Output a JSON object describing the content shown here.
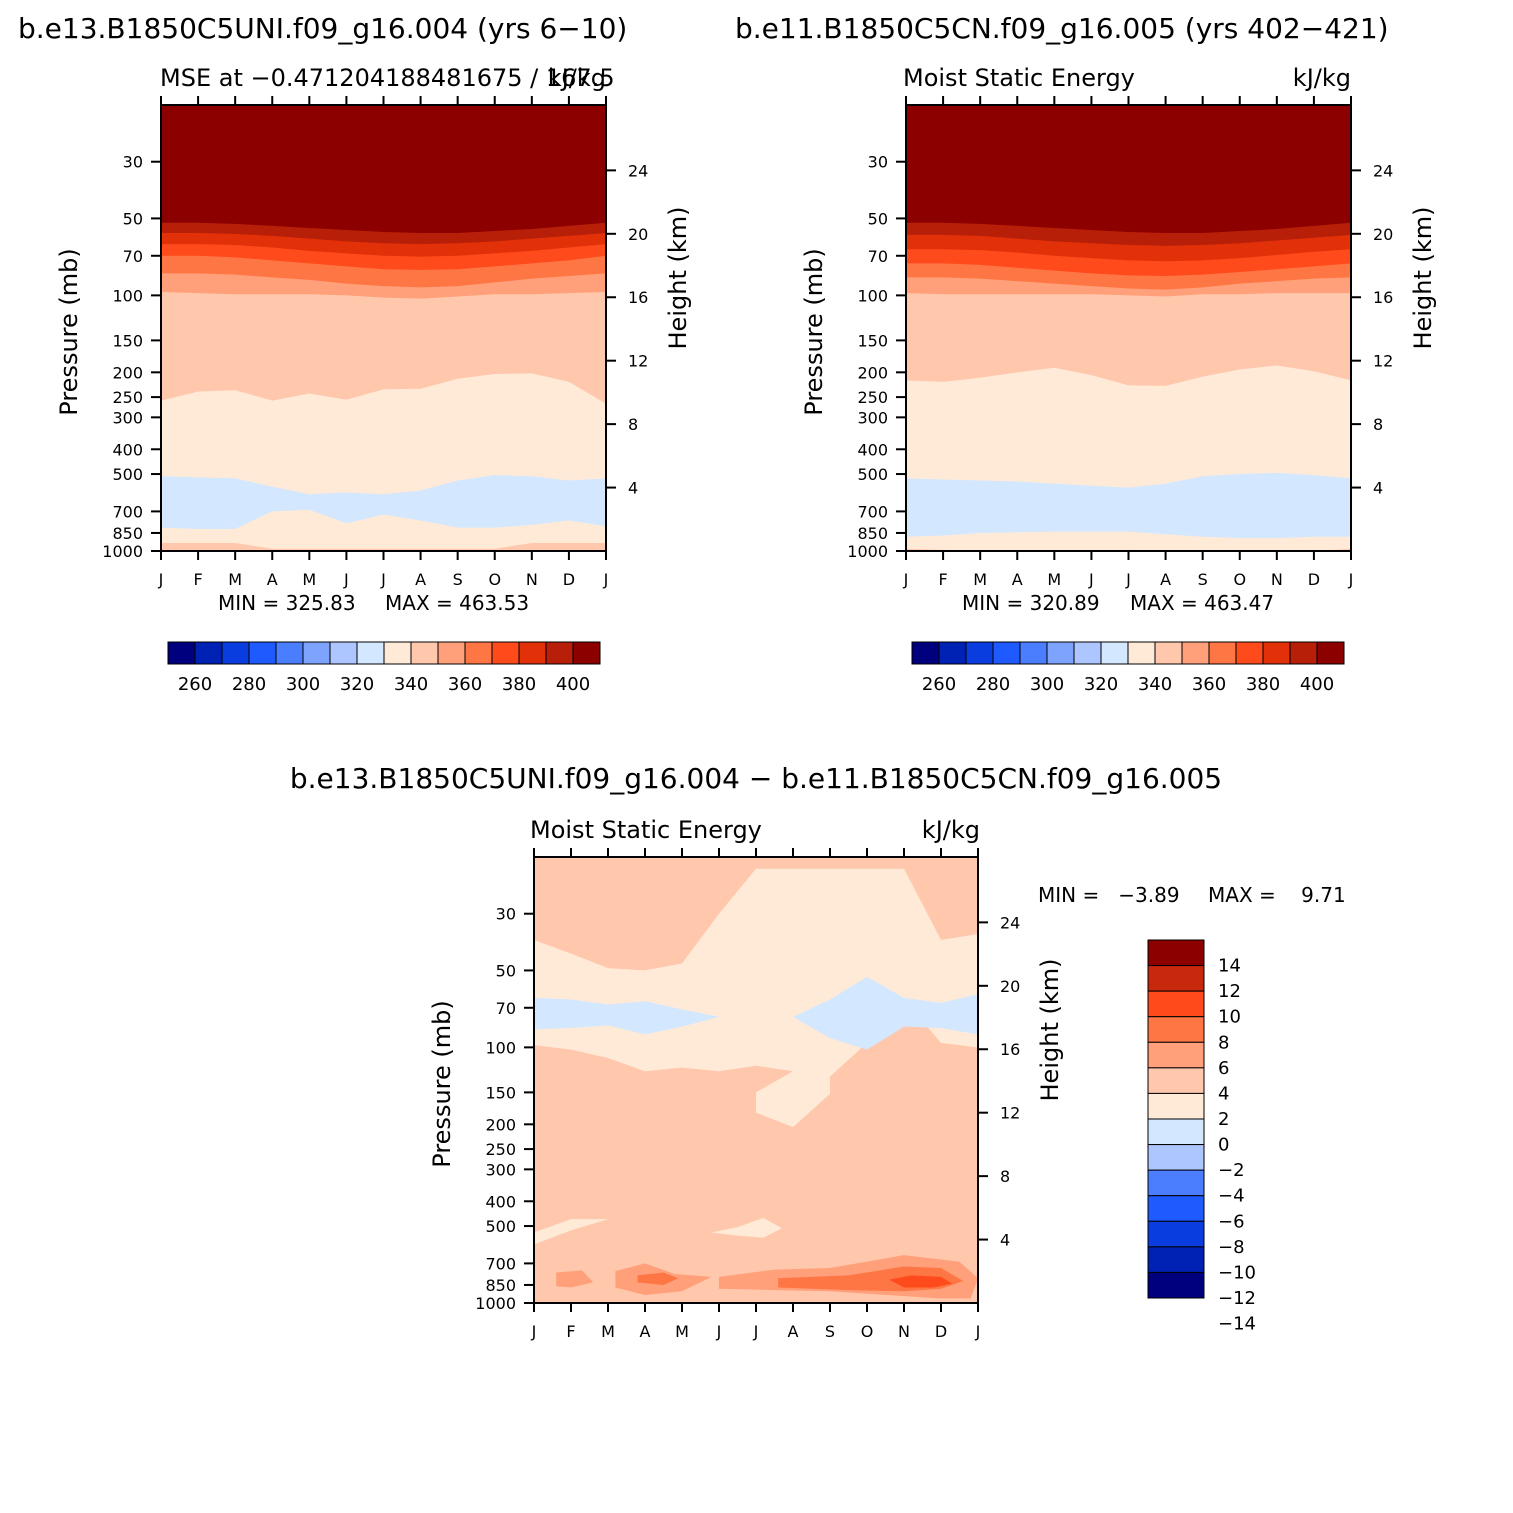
{
  "colors": {
    "mse_scale": [
      "#00007f",
      "#0022b4",
      "#0a3de0",
      "#1f5aff",
      "#4a7eff",
      "#7ea3ff",
      "#aec6ff",
      "#d3e7ff",
      "#ffead8",
      "#ffc8ad",
      "#ffa07a",
      "#ff7645",
      "#ff4a1c",
      "#e23009",
      "#b81f08",
      "#8c0000"
    ],
    "diff_scale": [
      "#00007f",
      "#0022b4",
      "#0a3de0",
      "#1f5aff",
      "#4a7eff",
      "#aec6ff",
      "#d3e7ff",
      "#ffead8",
      "#ffc8ad",
      "#ffa07a",
      "#ff7645",
      "#ff4a1c",
      "#c8280b",
      "#8c0000"
    ]
  },
  "chart_data": [
    {
      "type": "heatmap",
      "figure_title": "b.e13.B1850C5UNI.f09_g16.004 (yrs 6-10)",
      "title_left": "MSE at -0.471204188481675 / 167.5",
      "title_right": "kJ/kg",
      "ylabel": "Pressure (mb)",
      "ylabel_right": "Height (km)",
      "months": [
        "J",
        "F",
        "M",
        "A",
        "M",
        "J",
        "J",
        "A",
        "S",
        "O",
        "N",
        "D",
        "J"
      ],
      "pressure_ticks": [
        "30",
        "50",
        "70",
        "100",
        "150",
        "200",
        "250",
        "300",
        "400",
        "500",
        "700",
        "850",
        "1000"
      ],
      "height_ticks": [
        "4",
        "8",
        "12",
        "16",
        "20",
        "24"
      ],
      "contour_levels": [
        260,
        270,
        280,
        290,
        300,
        310,
        320,
        330,
        340,
        350,
        360,
        370,
        380,
        390,
        400
      ],
      "colorbar_labels": [
        "260",
        "280",
        "300",
        "320",
        "340",
        "360",
        "380",
        "400"
      ],
      "min_label": "MIN = 325.83",
      "max_label": "MAX = 463.53",
      "bands": [
        {
          "level": 400,
          "boundary_mb": [
            52,
            52,
            52.5,
            53.5,
            54.5,
            55.5,
            56.5,
            57,
            57,
            56,
            55,
            53.5,
            52
          ]
        },
        {
          "level": 390,
          "boundary_mb": [
            57,
            57,
            57.5,
            58.5,
            60,
            61.5,
            62.5,
            63,
            62.5,
            61.5,
            60,
            58.5,
            57
          ]
        },
        {
          "level": 380,
          "boundary_mb": [
            63,
            63,
            63.5,
            65,
            67,
            68.5,
            70,
            70.5,
            70,
            68.5,
            67,
            65,
            63
          ]
        },
        {
          "level": 370,
          "boundary_mb": [
            70,
            70,
            71,
            73,
            75,
            77,
            79,
            79.5,
            79,
            77,
            75,
            73,
            70
          ]
        },
        {
          "level": 360,
          "boundary_mb": [
            82,
            82,
            83,
            85,
            87,
            90,
            92,
            93,
            92,
            89,
            86,
            84,
            82
          ]
        },
        {
          "level": 350,
          "boundary_mb": [
            97,
            98,
            99,
            99,
            99,
            100,
            102,
            103,
            101,
            99,
            99,
            98,
            97
          ]
        },
        {
          "level": 340,
          "boundary_mb": [
            258,
            238,
            235,
            258,
            242,
            256,
            233,
            232,
            212,
            203,
            202,
            218,
            265
          ]
        },
        {
          "level": 330,
          "boundary_mb": [
            930,
            930,
            930,
            980,
            980,
            980,
            980,
            980,
            980,
            980,
            930,
            930,
            930
          ]
        }
      ],
      "min_blobs": [
        {
          "level": 320,
          "top_mb": [
            510,
            515,
            520,
            560,
            600,
            590,
            600,
            580,
            530,
            505,
            510,
            530,
            520
          ],
          "bottom_mb": [
            810,
            820,
            820,
            700,
            690,
            780,
            720,
            760,
            810,
            810,
            790,
            760,
            800
          ]
        }
      ]
    },
    {
      "type": "heatmap",
      "figure_title": "b.e11.B1850C5CN.f09_g16.005 (yrs 402-421)",
      "title_left": "Moist Static Energy",
      "title_right": "kJ/kg",
      "ylabel": "Pressure (mb)",
      "ylabel_right": "Height (km)",
      "months": [
        "J",
        "F",
        "M",
        "A",
        "M",
        "J",
        "J",
        "A",
        "S",
        "O",
        "N",
        "D",
        "J"
      ],
      "pressure_ticks": [
        "30",
        "50",
        "70",
        "100",
        "150",
        "200",
        "250",
        "300",
        "400",
        "500",
        "700",
        "850",
        "1000"
      ],
      "height_ticks": [
        "4",
        "8",
        "12",
        "16",
        "20",
        "24"
      ],
      "contour_levels": [
        260,
        270,
        280,
        290,
        300,
        310,
        320,
        330,
        340,
        350,
        360,
        370,
        380,
        390,
        400
      ],
      "colorbar_labels": [
        "260",
        "280",
        "300",
        "320",
        "340",
        "360",
        "380",
        "400"
      ],
      "min_label": "MIN = 320.89",
      "max_label": "MAX = 463.47",
      "bands": [
        {
          "level": 400,
          "boundary_mb": [
            52,
            52,
            52.5,
            53.5,
            54.5,
            55.5,
            56.5,
            57,
            57,
            56,
            55,
            53.5,
            52
          ]
        },
        {
          "level": 390,
          "boundary_mb": [
            58,
            58,
            58.5,
            60,
            61.5,
            62.5,
            63.5,
            64,
            63.5,
            62.5,
            61,
            59.5,
            58
          ]
        },
        {
          "level": 380,
          "boundary_mb": [
            66,
            66,
            66.5,
            68,
            70,
            71.5,
            73,
            73.5,
            73,
            71.5,
            69.5,
            67.5,
            66
          ]
        },
        {
          "level": 370,
          "boundary_mb": [
            75,
            75,
            76,
            78,
            80,
            82,
            83.5,
            84,
            83,
            81,
            79,
            77,
            75
          ]
        },
        {
          "level": 360,
          "boundary_mb": [
            85,
            85,
            86,
            88,
            90,
            92,
            94,
            95,
            93,
            90,
            88,
            86,
            85
          ]
        },
        {
          "level": 350,
          "boundary_mb": [
            98,
            99,
            99,
            99,
            99,
            99,
            100,
            101,
            99,
            99,
            98,
            98,
            98
          ]
        },
        {
          "level": 340,
          "boundary_mb": [
            215,
            218,
            210,
            200,
            192,
            205,
            225,
            226,
            208,
            195,
            188,
            198,
            215
          ]
        },
        {
          "level": 330,
          "boundary_mb": [
            980,
            990,
            1000,
            1000,
            1000,
            1000,
            990,
            1000,
            1000,
            1000,
            1000,
            1000,
            980
          ]
        }
      ],
      "min_blobs": [
        {
          "level": 320,
          "top_mb": [
            520,
            525,
            530,
            535,
            545,
            555,
            565,
            545,
            510,
            500,
            495,
            505,
            520
          ],
          "bottom_mb": [
            880,
            870,
            850,
            845,
            840,
            840,
            840,
            860,
            880,
            890,
            890,
            880,
            880
          ]
        }
      ]
    },
    {
      "type": "heatmap",
      "figure_title": "b.e13.B1850C5UNI.f09_g16.004 - b.e11.B1850C5CN.f09_g16.005",
      "title_left": "Moist Static Energy",
      "title_right": "kJ/kg",
      "ylabel": "Pressure (mb)",
      "ylabel_right": "Height (km)",
      "months": [
        "J",
        "F",
        "M",
        "A",
        "M",
        "J",
        "J",
        "A",
        "S",
        "O",
        "N",
        "D",
        "J"
      ],
      "pressure_ticks": [
        "30",
        "50",
        "70",
        "100",
        "150",
        "200",
        "250",
        "300",
        "400",
        "500",
        "700",
        "850",
        "1000"
      ],
      "height_ticks": [
        "4",
        "8",
        "12",
        "16",
        "20",
        "24"
      ],
      "contour_levels": [
        -14,
        -12,
        -10,
        -8,
        -6,
        -4,
        -2,
        0,
        2,
        4,
        6,
        8,
        10,
        12,
        14
      ],
      "colorbar_labels": [
        "14",
        "12",
        "10",
        "8",
        "6",
        "4",
        "2",
        "0",
        "-2",
        "-4",
        "-6",
        "-8",
        "-10",
        "-12",
        "-14"
      ],
      "min_label": "MIN =   -3.89",
      "max_label": "MAX =    9.71",
      "regions": [
        {
          "name": "upper-negative",
          "level": -1,
          "points": [
            [
              0,
              38
            ],
            [
              1,
              43
            ],
            [
              2,
              49
            ],
            [
              3,
              50
            ],
            [
              4,
              47
            ],
            [
              5,
              30
            ],
            [
              6,
              20
            ],
            [
              7,
              20
            ],
            [
              8,
              20
            ],
            [
              9,
              20
            ],
            [
              10,
              20
            ],
            [
              11,
              38
            ],
            [
              12,
              36
            ],
            [
              12,
              100
            ],
            [
              11,
              96
            ],
            [
              10,
              65
            ],
            [
              9,
              96
            ],
            [
              8,
              130
            ],
            [
              8,
              152
            ],
            [
              7,
              205
            ],
            [
              6,
              180
            ],
            [
              6,
              150
            ],
            [
              7,
              124
            ],
            [
              6,
              118
            ],
            [
              5,
              124
            ],
            [
              4,
              120
            ],
            [
              3,
              124
            ],
            [
              2,
              110
            ],
            [
              1,
              102
            ],
            [
              0,
              98
            ]
          ]
        },
        {
          "name": "upper-strong-negative",
          "level": -3,
          "points": [
            [
              0,
              64
            ],
            [
              1,
              65
            ],
            [
              2,
              68
            ],
            [
              3,
              66
            ],
            [
              4,
              71
            ],
            [
              5,
              76
            ],
            [
              4,
              83
            ],
            [
              3,
              89
            ],
            [
              2,
              82
            ],
            [
              1,
              84
            ],
            [
              0,
              85
            ]
          ]
        },
        {
          "name": "upper-strong-negative-2",
          "level": -3,
          "points": [
            [
              7,
              76
            ],
            [
              8,
              65
            ],
            [
              9,
              53
            ],
            [
              10,
              64
            ],
            [
              11,
              67
            ],
            [
              12,
              62
            ],
            [
              12,
              89
            ],
            [
              11,
              84
            ],
            [
              10,
              83
            ],
            [
              9,
              102
            ],
            [
              8,
              92
            ]
          ]
        },
        {
          "name": "lower-negative-1",
          "level": -1,
          "points": [
            [
              0,
              530
            ],
            [
              1,
              470
            ],
            [
              2,
              470
            ],
            [
              1,
              520
            ],
            [
              0,
              590
            ]
          ]
        },
        {
          "name": "lower-negative-2",
          "level": -1,
          "points": [
            [
              4.8,
              530
            ],
            [
              5.5,
              505
            ],
            [
              6.2,
              465
            ],
            [
              6.7,
              510
            ],
            [
              6.2,
              555
            ],
            [
              5.5,
              545
            ]
          ]
        },
        {
          "name": "lower-positive-4",
          "level": 3,
          "points": [
            [
              0.6,
              760
            ],
            [
              1.3,
              745
            ],
            [
              1.6,
              830
            ],
            [
              1,
              870
            ],
            [
              0.6,
              860
            ]
          ]
        },
        {
          "name": "lower-positive-4b",
          "level": 3,
          "points": [
            [
              2.2,
              750
            ],
            [
              3,
              700
            ],
            [
              3.8,
              770
            ],
            [
              4.8,
              790
            ],
            [
              4,
              900
            ],
            [
              3,
              930
            ],
            [
              2.2,
              870
            ]
          ]
        },
        {
          "name": "lower-positive-4c",
          "level": 3,
          "points": [
            [
              5,
              790
            ],
            [
              6.5,
              740
            ],
            [
              8,
              730
            ],
            [
              10,
              650
            ],
            [
              11.5,
              690
            ],
            [
              12,
              800
            ],
            [
              11.8,
              960
            ],
            [
              11,
              960
            ],
            [
              10,
              940
            ],
            [
              9,
              920
            ],
            [
              8,
              900
            ],
            [
              6.5,
              890
            ],
            [
              5,
              880
            ]
          ]
        },
        {
          "name": "lower-positive-6",
          "level": 5,
          "points": [
            [
              2.8,
              780
            ],
            [
              3.5,
              760
            ],
            [
              3.9,
              800
            ],
            [
              3.5,
              850
            ],
            [
              2.8,
              830
            ]
          ]
        },
        {
          "name": "lower-positive-6b",
          "level": 5,
          "points": [
            [
              6.6,
              800
            ],
            [
              8.5,
              780
            ],
            [
              10,
              720
            ],
            [
              11,
              730
            ],
            [
              11.6,
              820
            ],
            [
              11,
              880
            ],
            [
              10,
              900
            ],
            [
              8.5,
              890
            ],
            [
              6.6,
              870
            ]
          ]
        },
        {
          "name": "lower-positive-8",
          "level": 7,
          "points": [
            [
              9.6,
              810
            ],
            [
              10.2,
              780
            ],
            [
              11,
              790
            ],
            [
              11.3,
              840
            ],
            [
              10.8,
              870
            ],
            [
              10,
              870
            ]
          ]
        }
      ]
    }
  ]
}
